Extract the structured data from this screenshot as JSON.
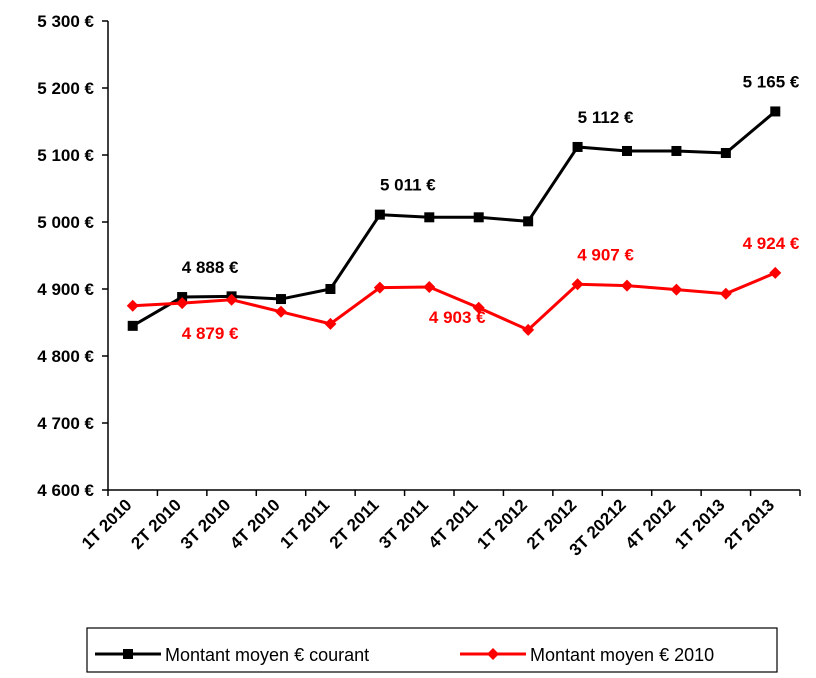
{
  "chart_data": {
    "type": "line",
    "categories": [
      "1T 2010",
      "2T 2010",
      "3T 2010",
      "4T 2010",
      "1T 2011",
      "2T 2011",
      "3T 2011",
      "4T 2011",
      "1T 2012",
      "2T 2012",
      "3T 20212",
      "4T 2012",
      "1T 2013",
      "2T 2013"
    ],
    "series": [
      {
        "name": "Montant moyen € courant",
        "color": "#000000",
        "marker": "square",
        "values": [
          4845,
          4888,
          4889,
          4885,
          4900,
          5011,
          5007,
          5007,
          5001,
          5112,
          5106,
          5106,
          5103,
          5165
        ],
        "value_labels": [
          null,
          "4 888 €",
          null,
          null,
          null,
          "5 011 €",
          null,
          null,
          null,
          "5 112 €",
          null,
          null,
          null,
          "5 165 €"
        ]
      },
      {
        "name": "Montant moyen € 2010",
        "color": "#ff0000",
        "marker": "diamond",
        "values": [
          4875,
          4879,
          4884,
          4866,
          4848,
          4902,
          4903,
          4872,
          4839,
          4907,
          4905,
          4899,
          4893,
          4924
        ],
        "value_labels": [
          null,
          "4 879 €",
          null,
          null,
          null,
          null,
          "4 903 €",
          null,
          null,
          "4 907 €",
          null,
          null,
          null,
          "4 924 €"
        ]
      }
    ],
    "ylim": [
      4600,
      5300
    ],
    "yticks": [
      {
        "value": 4600,
        "label": "4 600 €"
      },
      {
        "value": 4700,
        "label": "4 700 €"
      },
      {
        "value": 4800,
        "label": "4 800 €"
      },
      {
        "value": 4900,
        "label": "4 900 €"
      },
      {
        "value": 5000,
        "label": "5 000 €"
      },
      {
        "value": 5100,
        "label": "5 100 €"
      },
      {
        "value": 5200,
        "label": "5 200 €"
      },
      {
        "value": 5300,
        "label": "5 300 €"
      }
    ],
    "grid": false,
    "legend": "bottom"
  }
}
